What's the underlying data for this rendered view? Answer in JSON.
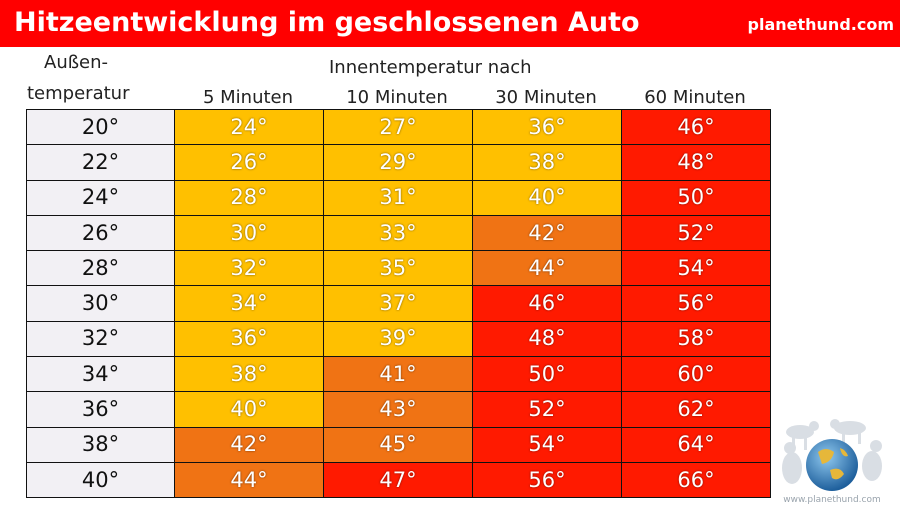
{
  "header": {
    "title": "Hitzeentwicklung im geschlossenen Auto",
    "brand": "planethund.com"
  },
  "table": {
    "row_header_line1": "Außen-",
    "row_header_line2": "temperatur",
    "group_header": "Innentemperatur nach",
    "columns": [
      "5 Minuten",
      "10 Minuten",
      "30 Minuten",
      "60 Minuten"
    ],
    "colors": {
      "yellow": "#ffc000",
      "orange": "#f07314",
      "red": "#ff1a00",
      "outside": "#f2f0f4"
    },
    "rows": [
      {
        "outside": "20°",
        "cells": [
          {
            "v": "24°",
            "c": "yellow"
          },
          {
            "v": "27°",
            "c": "yellow"
          },
          {
            "v": "36°",
            "c": "yellow"
          },
          {
            "v": "46°",
            "c": "red"
          }
        ]
      },
      {
        "outside": "22°",
        "cells": [
          {
            "v": "26°",
            "c": "yellow"
          },
          {
            "v": "29°",
            "c": "yellow"
          },
          {
            "v": "38°",
            "c": "yellow"
          },
          {
            "v": "48°",
            "c": "red"
          }
        ]
      },
      {
        "outside": "24°",
        "cells": [
          {
            "v": "28°",
            "c": "yellow"
          },
          {
            "v": "31°",
            "c": "yellow"
          },
          {
            "v": "40°",
            "c": "yellow"
          },
          {
            "v": "50°",
            "c": "red"
          }
        ]
      },
      {
        "outside": "26°",
        "cells": [
          {
            "v": "30°",
            "c": "yellow"
          },
          {
            "v": "33°",
            "c": "yellow"
          },
          {
            "v": "42°",
            "c": "orange"
          },
          {
            "v": "52°",
            "c": "red"
          }
        ]
      },
      {
        "outside": "28°",
        "cells": [
          {
            "v": "32°",
            "c": "yellow"
          },
          {
            "v": "35°",
            "c": "yellow"
          },
          {
            "v": "44°",
            "c": "orange"
          },
          {
            "v": "54°",
            "c": "red"
          }
        ]
      },
      {
        "outside": "30°",
        "cells": [
          {
            "v": "34°",
            "c": "yellow"
          },
          {
            "v": "37°",
            "c": "yellow"
          },
          {
            "v": "46°",
            "c": "red"
          },
          {
            "v": "56°",
            "c": "red"
          }
        ]
      },
      {
        "outside": "32°",
        "cells": [
          {
            "v": "36°",
            "c": "yellow"
          },
          {
            "v": "39°",
            "c": "yellow"
          },
          {
            "v": "48°",
            "c": "red"
          },
          {
            "v": "58°",
            "c": "red"
          }
        ]
      },
      {
        "outside": "34°",
        "cells": [
          {
            "v": "38°",
            "c": "yellow"
          },
          {
            "v": "41°",
            "c": "orange"
          },
          {
            "v": "50°",
            "c": "red"
          },
          {
            "v": "60°",
            "c": "red"
          }
        ]
      },
      {
        "outside": "36°",
        "cells": [
          {
            "v": "40°",
            "c": "yellow"
          },
          {
            "v": "43°",
            "c": "orange"
          },
          {
            "v": "52°",
            "c": "red"
          },
          {
            "v": "62°",
            "c": "red"
          }
        ]
      },
      {
        "outside": "38°",
        "cells": [
          {
            "v": "42°",
            "c": "orange"
          },
          {
            "v": "45°",
            "c": "orange"
          },
          {
            "v": "54°",
            "c": "red"
          },
          {
            "v": "64°",
            "c": "red"
          }
        ]
      },
      {
        "outside": "40°",
        "cells": [
          {
            "v": "44°",
            "c": "orange"
          },
          {
            "v": "47°",
            "c": "red"
          },
          {
            "v": "56°",
            "c": "red"
          },
          {
            "v": "66°",
            "c": "red"
          }
        ]
      }
    ]
  },
  "logo": {
    "icon": "planethund-globe-dogs-logo",
    "text": "www.planethund.com"
  }
}
